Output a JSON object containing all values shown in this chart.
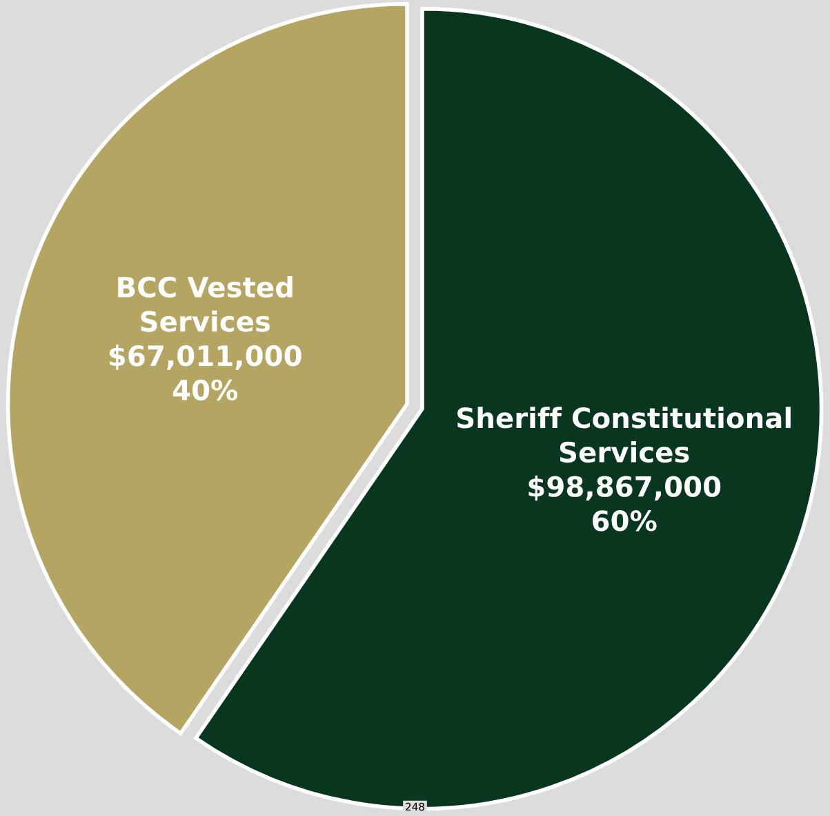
{
  "chart_data": {
    "type": "pie",
    "categories": [
      "Sheriff Constitutional\nServices",
      "BCC Vested\nServices"
    ],
    "values": [
      98867000,
      67011000
    ],
    "colors": [
      "#08361f",
      "#b5a562"
    ],
    "value_labels": [
      "$98,867,000\n60%",
      "$67,011,000\n40%"
    ],
    "annotations": [
      "248"
    ]
  }
}
